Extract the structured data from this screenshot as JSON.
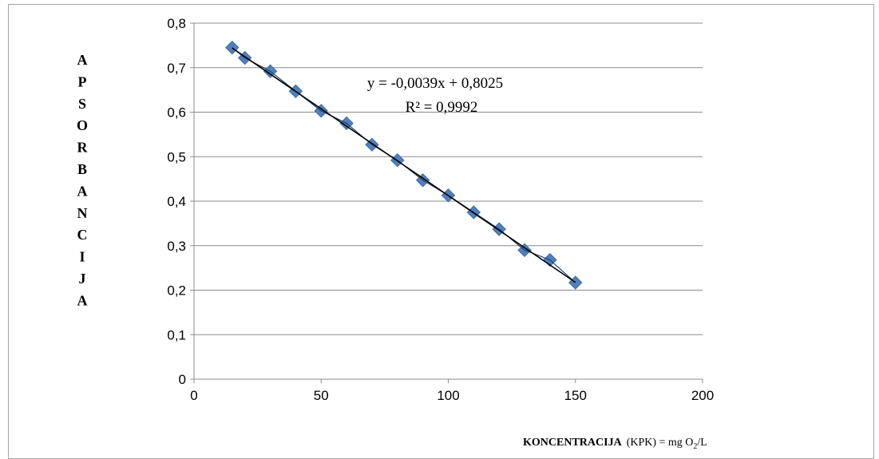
{
  "chart_data": {
    "type": "scatter",
    "title": "",
    "xlabel_bold": "KONCENTRACIJA",
    "xlabel_rest": "(KPK) = mg O",
    "xlabel_sub": "2",
    "xlabel_tail": "/L",
    "ylabel": "APSORBANCIJA",
    "xlim": [
      0,
      200
    ],
    "ylim": [
      0,
      0.8
    ],
    "x_ticks": [
      0,
      50,
      100,
      150,
      200
    ],
    "x_tick_labels": [
      "0",
      "50",
      "100",
      "150",
      "200"
    ],
    "y_ticks": [
      0,
      0.1,
      0.2,
      0.3,
      0.4,
      0.5,
      0.6,
      0.7,
      0.8
    ],
    "y_tick_labels": [
      "0",
      "0,1",
      "0,2",
      "0,3",
      "0,4",
      "0,5",
      "0,6",
      "0,7",
      "0,8"
    ],
    "grid": "horizontal",
    "series": [
      {
        "x": [
          15,
          20,
          30,
          40,
          50,
          60,
          70,
          80,
          90,
          100,
          110,
          120,
          130,
          140,
          150
        ],
        "y": [
          0.745,
          0.722,
          0.692,
          0.647,
          0.603,
          0.575,
          0.527,
          0.492,
          0.447,
          0.413,
          0.375,
          0.337,
          0.29,
          0.268,
          0.217
        ],
        "marker": "diamond",
        "color": "#4f81bd"
      }
    ],
    "trendline": {
      "slope": -0.0039,
      "intercept": 0.8025,
      "x_range": [
        15,
        150
      ],
      "color": "#000000",
      "equation": "y = -0,0039x + 0,8025",
      "r_squared": "R² = 0,9992"
    }
  }
}
